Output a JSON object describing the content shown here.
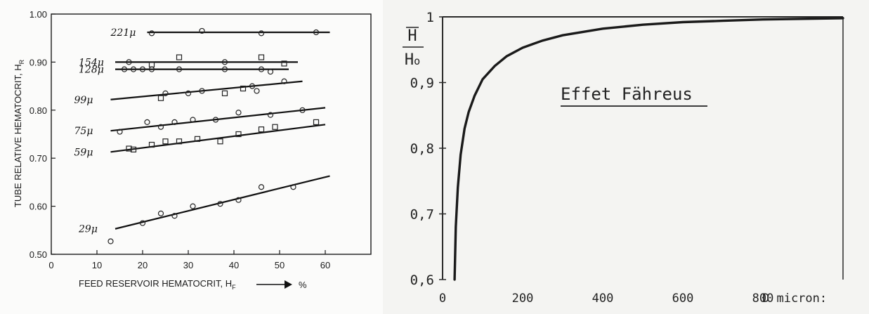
{
  "chart_data": [
    {
      "type": "scatter",
      "xlabel": "FEED RESERVOIR HEMATOCRIT, H",
      "xlabel_sub": "F",
      "xlabel_unit": "%",
      "ylabel": "TUBE RELATIVE HEMATOCRIT, H",
      "ylabel_sub": "R",
      "xlim": [
        0,
        70
      ],
      "ylim": [
        0.5,
        1.0
      ],
      "x_ticks": [
        0,
        10,
        20,
        30,
        40,
        50,
        60
      ],
      "y_ticks": [
        0.5,
        0.6,
        0.7,
        0.8,
        0.9,
        1.0
      ],
      "y_tick_labels": [
        "0.50",
        "0.60",
        "0.70",
        "0.80",
        "0.90",
        "1.00"
      ],
      "series": [
        {
          "name": "221μ",
          "marker": "circle",
          "fit": [
            [
              21,
              0.962
            ],
            [
              61,
              0.962
            ]
          ],
          "points": [
            [
              22,
              0.96
            ],
            [
              33,
              0.965
            ],
            [
              46,
              0.96
            ],
            [
              58,
              0.962
            ]
          ]
        },
        {
          "name": "154μ",
          "marker": "mixed",
          "fit": [
            [
              14,
              0.9
            ],
            [
              54,
              0.9
            ]
          ],
          "points": [
            [
              17,
              0.9,
              "circle"
            ],
            [
              22,
              0.895,
              "square"
            ],
            [
              28,
              0.91,
              "square"
            ],
            [
              38,
              0.9,
              "circle"
            ],
            [
              46,
              0.91,
              "square"
            ],
            [
              51,
              0.897,
              "square"
            ]
          ]
        },
        {
          "name": "128μ",
          "marker": "circle",
          "fit": [
            [
              14,
              0.885
            ],
            [
              52,
              0.885
            ]
          ],
          "points": [
            [
              16,
              0.885
            ],
            [
              18,
              0.885
            ],
            [
              20,
              0.885
            ],
            [
              22,
              0.885
            ],
            [
              28,
              0.885
            ],
            [
              38,
              0.885
            ],
            [
              46,
              0.885
            ],
            [
              48,
              0.88
            ]
          ]
        },
        {
          "name": "99μ",
          "marker": "mixed",
          "fit": [
            [
              13,
              0.822
            ],
            [
              55,
              0.86
            ]
          ],
          "points": [
            [
              24,
              0.825,
              "square"
            ],
            [
              25,
              0.835,
              "circle"
            ],
            [
              30,
              0.835,
              "circle"
            ],
            [
              33,
              0.84,
              "circle"
            ],
            [
              38,
              0.835,
              "square"
            ],
            [
              42,
              0.845,
              "square"
            ],
            [
              44,
              0.85,
              "circle"
            ],
            [
              45,
              0.84,
              "circle"
            ],
            [
              51,
              0.86,
              "circle"
            ]
          ]
        },
        {
          "name": "75μ",
          "marker": "circle",
          "fit": [
            [
              13,
              0.757
            ],
            [
              60,
              0.805
            ]
          ],
          "points": [
            [
              15,
              0.755
            ],
            [
              21,
              0.775
            ],
            [
              24,
              0.765
            ],
            [
              27,
              0.775
            ],
            [
              31,
              0.78
            ],
            [
              36,
              0.78
            ],
            [
              41,
              0.795
            ],
            [
              48,
              0.79
            ],
            [
              55,
              0.8
            ]
          ]
        },
        {
          "name": "59μ",
          "marker": "square",
          "fit": [
            [
              13,
              0.713
            ],
            [
              60,
              0.77
            ]
          ],
          "points": [
            [
              17,
              0.72
            ],
            [
              18,
              0.718
            ],
            [
              22,
              0.728
            ],
            [
              25,
              0.735
            ],
            [
              28,
              0.735
            ],
            [
              32,
              0.74
            ],
            [
              37,
              0.735
            ],
            [
              41,
              0.75
            ],
            [
              46,
              0.76
            ],
            [
              49,
              0.765
            ],
            [
              58,
              0.775
            ]
          ]
        },
        {
          "name": "29μ",
          "marker": "circle",
          "fit": [
            [
              14,
              0.553
            ],
            [
              61,
              0.663
            ]
          ],
          "points": [
            [
              13,
              0.527
            ],
            [
              20,
              0.565
            ],
            [
              24,
              0.585
            ],
            [
              27,
              0.58
            ],
            [
              31,
              0.6
            ],
            [
              37,
              0.605
            ],
            [
              41,
              0.613
            ],
            [
              46,
              0.64
            ],
            [
              53,
              0.64
            ]
          ]
        }
      ]
    },
    {
      "type": "line",
      "title": "Effet Fähreus",
      "ylabel_top": "H",
      "ylabel_bottom": "H",
      "ylabel_bottom_sub": "o",
      "xlabel": "D micron:",
      "xlim": [
        0,
        1000
      ],
      "ylim": [
        0.6,
        1.0
      ],
      "x_ticks": [
        0,
        200,
        400,
        600,
        800
      ],
      "y_ticks": [
        0.6,
        0.7,
        0.8,
        0.9,
        1.0
      ],
      "y_tick_labels": [
        "0,6",
        "0,7",
        "0,8",
        "0,9",
        "1"
      ],
      "series": [
        {
          "x": [
            30,
            33,
            38,
            45,
            55,
            65,
            80,
            100,
            130,
            160,
            200,
            250,
            300,
            400,
            500,
            600,
            700,
            800,
            900,
            1000
          ],
          "y": [
            0.6,
            0.68,
            0.74,
            0.79,
            0.83,
            0.855,
            0.88,
            0.905,
            0.925,
            0.94,
            0.953,
            0.964,
            0.972,
            0.982,
            0.988,
            0.992,
            0.994,
            0.996,
            0.997,
            0.998
          ]
        }
      ]
    }
  ]
}
